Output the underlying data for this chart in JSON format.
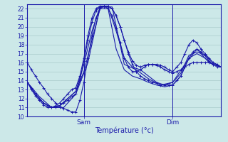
{
  "xlabel": "Température (°c)",
  "ylim": [
    10,
    22.5
  ],
  "xlim": [
    0,
    48
  ],
  "yticks": [
    10,
    11,
    12,
    13,
    14,
    15,
    16,
    17,
    18,
    19,
    20,
    21,
    22
  ],
  "bg_color": "#cce8e8",
  "grid_color": "#aacccc",
  "line_color": "#1a1aaa",
  "sam_x": 14,
  "dim_x": 36,
  "lines": [
    {
      "x": [
        0,
        1,
        2,
        3,
        4,
        5,
        6,
        7,
        8,
        9,
        10,
        11,
        12,
        13,
        14,
        15,
        16,
        17,
        18,
        19,
        20,
        21,
        22,
        23,
        24,
        25,
        26,
        27,
        28,
        29,
        30,
        31,
        32,
        33,
        34,
        35,
        36,
        37,
        38,
        39,
        40,
        41,
        42,
        43,
        44,
        45,
        46,
        47,
        48
      ],
      "y": [
        16.0,
        15.2,
        14.5,
        13.8,
        13.2,
        12.5,
        12.0,
        11.5,
        11.0,
        10.9,
        10.7,
        10.5,
        10.5,
        11.8,
        13.8,
        16.5,
        19.0,
        21.0,
        22.0,
        22.3,
        22.3,
        22.0,
        21.2,
        20.0,
        18.5,
        17.2,
        16.2,
        15.7,
        15.5,
        15.7,
        15.8,
        15.8,
        15.7,
        15.5,
        15.2,
        15.0,
        14.8,
        15.0,
        15.2,
        15.5,
        15.8,
        16.0,
        16.0,
        16.0,
        16.0,
        16.0,
        15.8,
        15.7,
        15.5
      ],
      "marker": true
    },
    {
      "x": [
        0,
        1,
        2,
        3,
        4,
        5,
        6,
        7,
        8,
        9,
        10,
        11,
        12,
        13,
        14,
        15,
        16,
        17,
        18,
        19,
        20,
        21,
        22,
        23,
        24,
        25,
        26,
        27,
        28,
        29,
        30,
        31,
        32,
        33,
        34,
        35,
        36,
        37,
        38,
        39,
        40,
        41,
        42,
        43,
        44,
        45,
        46,
        47,
        48
      ],
      "y": [
        13.8,
        13.2,
        12.5,
        12.0,
        11.5,
        11.2,
        11.0,
        11.0,
        11.2,
        11.5,
        11.8,
        12.2,
        12.5,
        14.0,
        16.2,
        18.5,
        20.5,
        21.8,
        22.2,
        22.3,
        22.3,
        22.0,
        21.2,
        20.0,
        18.5,
        17.0,
        15.8,
        15.0,
        14.5,
        14.2,
        14.0,
        13.8,
        13.7,
        13.5,
        13.5,
        13.5,
        13.5,
        14.0,
        14.5,
        15.5,
        16.5,
        17.2,
        17.5,
        17.2,
        16.8,
        16.2,
        15.8,
        15.5,
        15.5
      ],
      "marker": true
    },
    {
      "x": [
        0,
        1,
        2,
        3,
        4,
        5,
        6,
        7,
        8,
        9,
        10,
        11,
        12,
        13,
        14,
        15,
        16,
        17,
        18,
        19,
        20,
        21,
        22,
        23,
        24,
        25,
        26,
        27,
        28,
        29,
        30,
        31,
        32,
        33,
        34,
        35,
        36,
        37,
        38,
        39,
        40,
        41,
        42,
        43,
        44,
        45,
        46,
        47,
        48
      ],
      "y": [
        13.8,
        13.0,
        12.3,
        11.8,
        11.3,
        11.0,
        11.0,
        11.2,
        11.5,
        12.0,
        12.5,
        13.0,
        13.2,
        14.5,
        16.5,
        19.0,
        21.0,
        22.0,
        22.3,
        22.3,
        22.0,
        21.2,
        19.8,
        18.2,
        16.5,
        15.5,
        15.0,
        15.0,
        15.2,
        15.5,
        15.8,
        15.8,
        15.8,
        15.7,
        15.5,
        15.2,
        15.0,
        15.5,
        16.0,
        17.0,
        18.0,
        18.5,
        18.2,
        17.5,
        17.0,
        16.5,
        16.0,
        15.8,
        15.5
      ],
      "marker": true
    },
    {
      "x": [
        0,
        2,
        4,
        6,
        8,
        10,
        12,
        14,
        16,
        18,
        20,
        22,
        24,
        26,
        28,
        30,
        32,
        34,
        36,
        38,
        40,
        42,
        44,
        46,
        48
      ],
      "y": [
        13.8,
        12.5,
        11.5,
        11.0,
        11.2,
        12.0,
        12.8,
        15.8,
        19.5,
        22.2,
        22.2,
        19.5,
        16.5,
        15.5,
        15.2,
        14.5,
        13.8,
        13.5,
        13.8,
        14.8,
        16.8,
        17.2,
        16.8,
        16.0,
        15.5
      ],
      "marker": false
    },
    {
      "x": [
        0,
        2,
        4,
        6,
        8,
        10,
        12,
        14,
        16,
        18,
        20,
        22,
        24,
        26,
        28,
        30,
        32,
        34,
        36,
        38,
        40,
        42,
        44,
        46,
        48
      ],
      "y": [
        13.8,
        12.5,
        11.5,
        11.0,
        11.2,
        12.0,
        12.8,
        15.0,
        18.5,
        22.0,
        22.0,
        17.5,
        15.2,
        14.5,
        14.2,
        13.8,
        13.5,
        13.3,
        13.5,
        14.5,
        16.5,
        17.0,
        16.5,
        15.8,
        15.5
      ],
      "marker": false
    },
    {
      "x": [
        0,
        3,
        6,
        9,
        12,
        15,
        18,
        21,
        24,
        27,
        30,
        33,
        36,
        39,
        42,
        45,
        48
      ],
      "y": [
        13.8,
        12.2,
        11.0,
        11.0,
        12.5,
        16.0,
        22.2,
        22.2,
        15.8,
        15.2,
        14.2,
        13.5,
        13.8,
        15.8,
        17.5,
        16.0,
        15.5
      ],
      "marker": false
    }
  ]
}
